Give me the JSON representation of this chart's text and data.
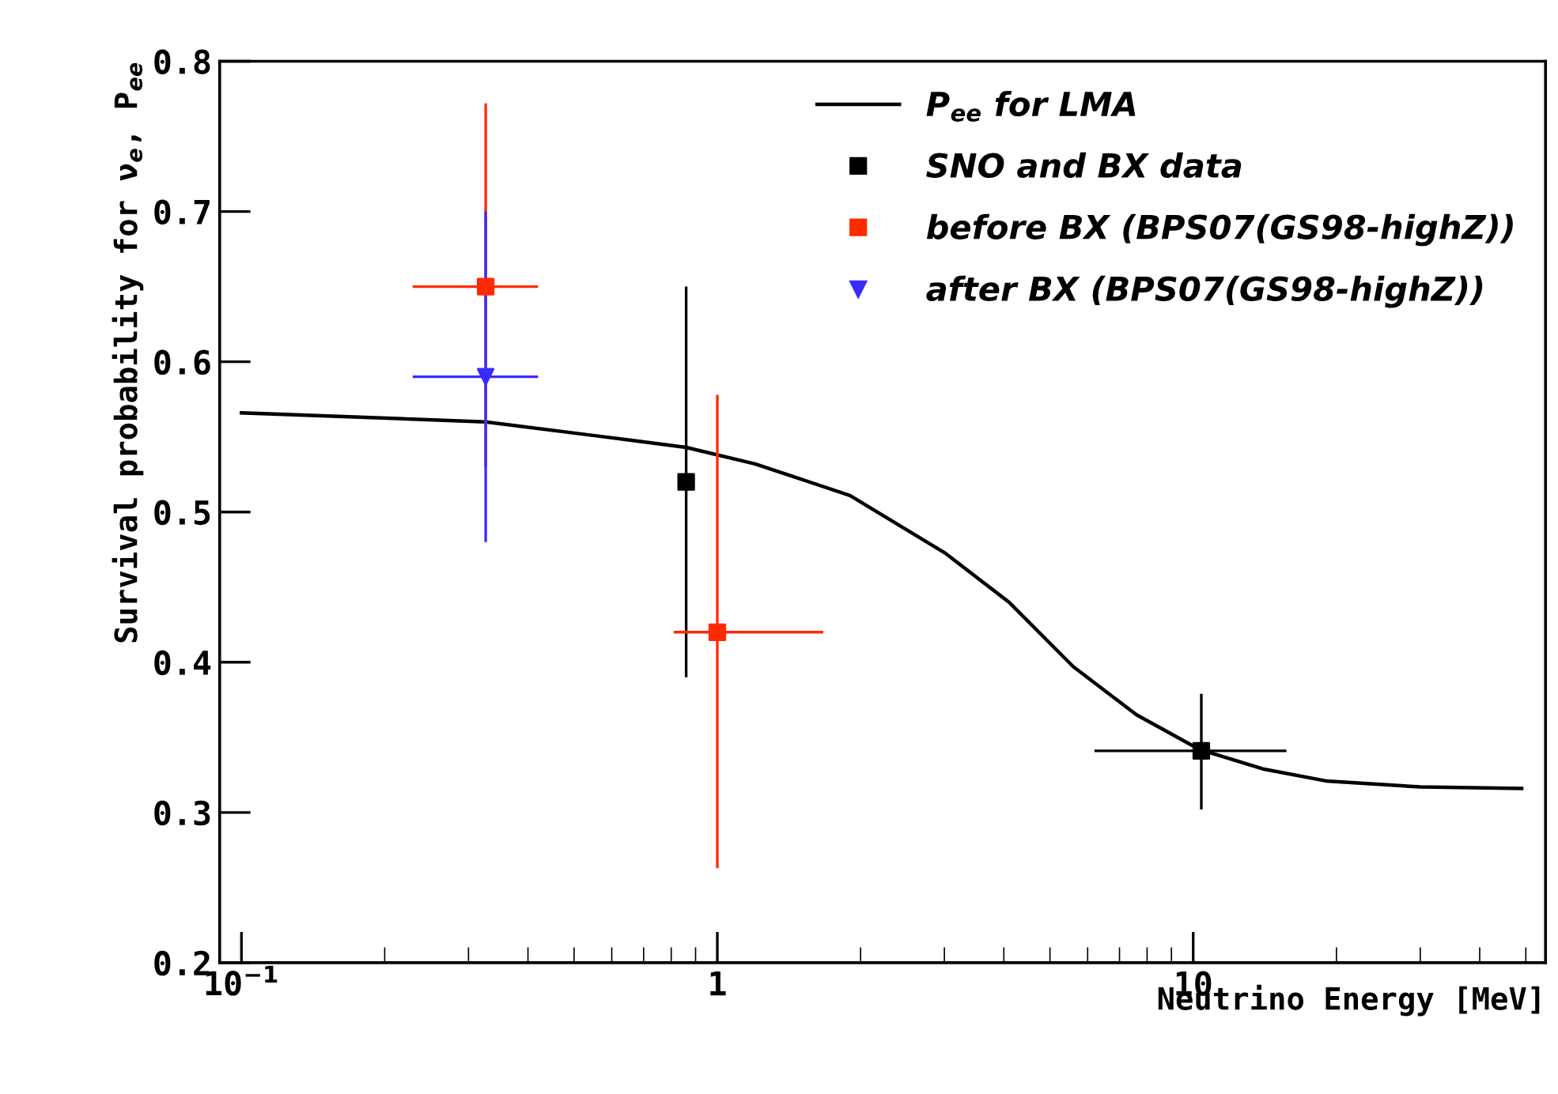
{
  "chart_data": {
    "type": "scatter",
    "xlabel": "Neutrino Energy [MeV]",
    "ylabel": "Survival probability for ν$_{e}$, P$_{ee}$",
    "log": "x",
    "xlim": [
      0.09,
      55
    ],
    "xticks": [
      {
        "value": 0.1,
        "label": "10$^{−1}$"
      },
      1,
      10
    ],
    "ylim": [
      0.2,
      0.8
    ],
    "yticks": [
      0.2,
      0.3,
      0.4,
      0.5,
      0.6,
      0.7,
      0.8
    ],
    "grid": false,
    "legend": "top right",
    "series": [
      {
        "type": "line",
        "name": "P$_{ee}$ for LMA",
        "color": "#000000",
        "marker": "none",
        "line_style": "solid",
        "x": [
          0.1,
          0.326,
          0.65,
          0.86,
          1.2,
          1.9,
          3.0,
          4.1,
          5.6,
          7.6,
          10.3,
          14,
          19,
          30,
          49
        ],
        "values": [
          0.566,
          0.56,
          0.548,
          0.543,
          0.532,
          0.511,
          0.473,
          0.44,
          0.397,
          0.365,
          0.342,
          0.329,
          0.321,
          0.317,
          0.316
        ]
      },
      {
        "name": "SNO and BX data",
        "color": "#000000",
        "marker": "square",
        "x": [
          0.86,
          10.4
        ],
        "values": [
          0.52,
          0.341
        ],
        "errors": [
          [
            0.39,
            0.65
          ],
          [
            0.302,
            0.379
          ]
        ],
        "xerrors": [
          null,
          [
            6.2,
            15.7
          ]
        ]
      },
      {
        "name": "before BX (BPS07(GS98-highZ))",
        "color": "#ff2a00",
        "marker": "square",
        "x": [
          0.326,
          1.0
        ],
        "values": [
          0.65,
          0.42
        ],
        "errors": [
          [
            0.53,
            0.772
          ],
          [
            0.263,
            0.578
          ]
        ],
        "xerrors": [
          [
            0.229,
            0.42
          ],
          [
            0.81,
            1.67
          ]
        ]
      },
      {
        "name": "after BX (BPS07(GS98-highZ))",
        "color": "#3a2cff",
        "marker": "triangle",
        "x": [
          0.326
        ],
        "values": [
          0.59
        ],
        "errors": [
          [
            0.48,
            0.7
          ]
        ],
        "xerrors": [
          [
            0.229,
            0.42
          ]
        ]
      }
    ]
  }
}
